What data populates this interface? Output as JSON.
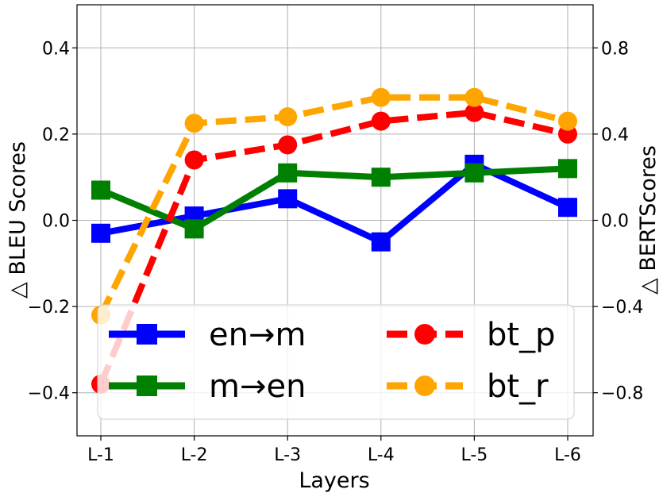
{
  "chart_data": {
    "type": "line",
    "categories": [
      "L-1",
      "L-2",
      "L-3",
      "L-4",
      "L-5",
      "L-6"
    ],
    "xlabel": "Layers",
    "ylabel": "△ BLEU Scores",
    "y2label": "△ BERTScores",
    "ylim": [
      -0.5,
      0.5
    ],
    "y2lim": [
      -1.0,
      1.0
    ],
    "yticks": [
      {
        "value": -0.4,
        "label": "−0.4"
      },
      {
        "value": -0.2,
        "label": "−0.2"
      },
      {
        "value": 0.0,
        "label": "0.0"
      },
      {
        "value": 0.2,
        "label": "0.2"
      },
      {
        "value": 0.4,
        "label": "0.4"
      }
    ],
    "y2ticks": [
      {
        "value": -0.8,
        "label": "−0.8"
      },
      {
        "value": -0.4,
        "label": "−0.4"
      },
      {
        "value": 0.0,
        "label": "0.0"
      },
      {
        "value": 0.4,
        "label": "0.4"
      },
      {
        "value": 0.8,
        "label": "0.8"
      }
    ],
    "grid": true,
    "legend_position": "lower-center",
    "series": [
      {
        "name": "en→m",
        "axis": "left",
        "color": "#0000ff",
        "marker": "square",
        "dash": false,
        "values": [
          -0.03,
          0.01,
          0.05,
          -0.05,
          0.13,
          0.03
        ]
      },
      {
        "name": "m→en",
        "axis": "left",
        "color": "#008000",
        "marker": "square",
        "dash": false,
        "values": [
          0.07,
          -0.02,
          0.11,
          0.1,
          0.11,
          0.12
        ]
      },
      {
        "name": "bt_p",
        "axis": "right",
        "color": "#ff0000",
        "marker": "circle",
        "dash": true,
        "values": [
          -0.76,
          0.28,
          0.35,
          0.46,
          0.5,
          0.4
        ]
      },
      {
        "name": "bt_r",
        "axis": "right",
        "color": "#ffa500",
        "marker": "circle",
        "dash": true,
        "values": [
          -0.44,
          0.45,
          0.48,
          0.57,
          0.57,
          0.46
        ]
      }
    ]
  }
}
